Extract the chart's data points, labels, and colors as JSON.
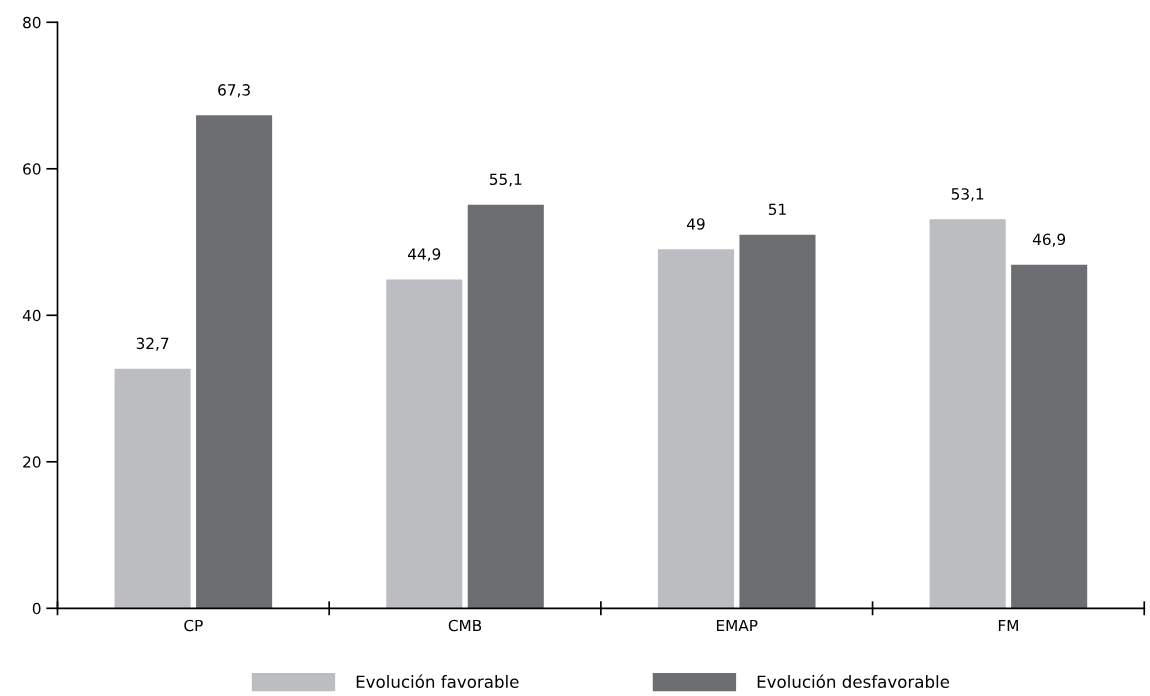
{
  "chart_data": {
    "type": "bar",
    "categories": [
      "CP",
      "CMB",
      "EMAP",
      "FM"
    ],
    "series": [
      {
        "name": "Evolución favorable",
        "color": "#bcbdc1",
        "values": [
          32.7,
          44.9,
          49,
          53.1
        ],
        "value_labels": [
          "32,7",
          "44,9",
          "49",
          "53,1"
        ]
      },
      {
        "name": "Evolución desfavorable",
        "color": "#6d6e72",
        "values": [
          67.3,
          55.1,
          51,
          46.9
        ],
        "value_labels": [
          "67,3",
          "55,1",
          "51",
          "46,9"
        ]
      }
    ],
    "ylim": [
      0,
      80
    ],
    "yticks": [
      0,
      20,
      40,
      60,
      80
    ],
    "grid": false,
    "legend": "bottom"
  }
}
